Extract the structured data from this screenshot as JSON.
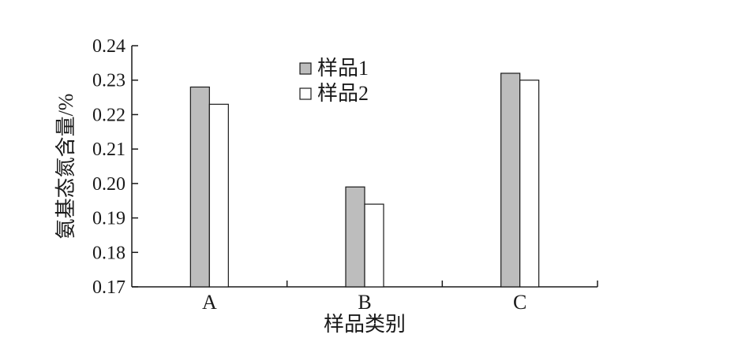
{
  "chart_data": {
    "type": "bar",
    "categories": [
      "A",
      "B",
      "C"
    ],
    "series": [
      {
        "name": "样品1",
        "values": [
          0.228,
          0.199,
          0.232
        ],
        "color": "#bdbdbd"
      },
      {
        "name": "样品2",
        "values": [
          0.223,
          0.194,
          0.23
        ],
        "color": "#ffffff"
      }
    ],
    "xlabel": "样品类别",
    "ylabel": "氨基态氮含量/%",
    "ylim": [
      0.17,
      0.24
    ],
    "yticks": [
      "0.17",
      "0.18",
      "0.19",
      "0.20",
      "0.21",
      "0.22",
      "0.23",
      "0.24"
    ],
    "grid": false,
    "legend_position": "top-center"
  }
}
